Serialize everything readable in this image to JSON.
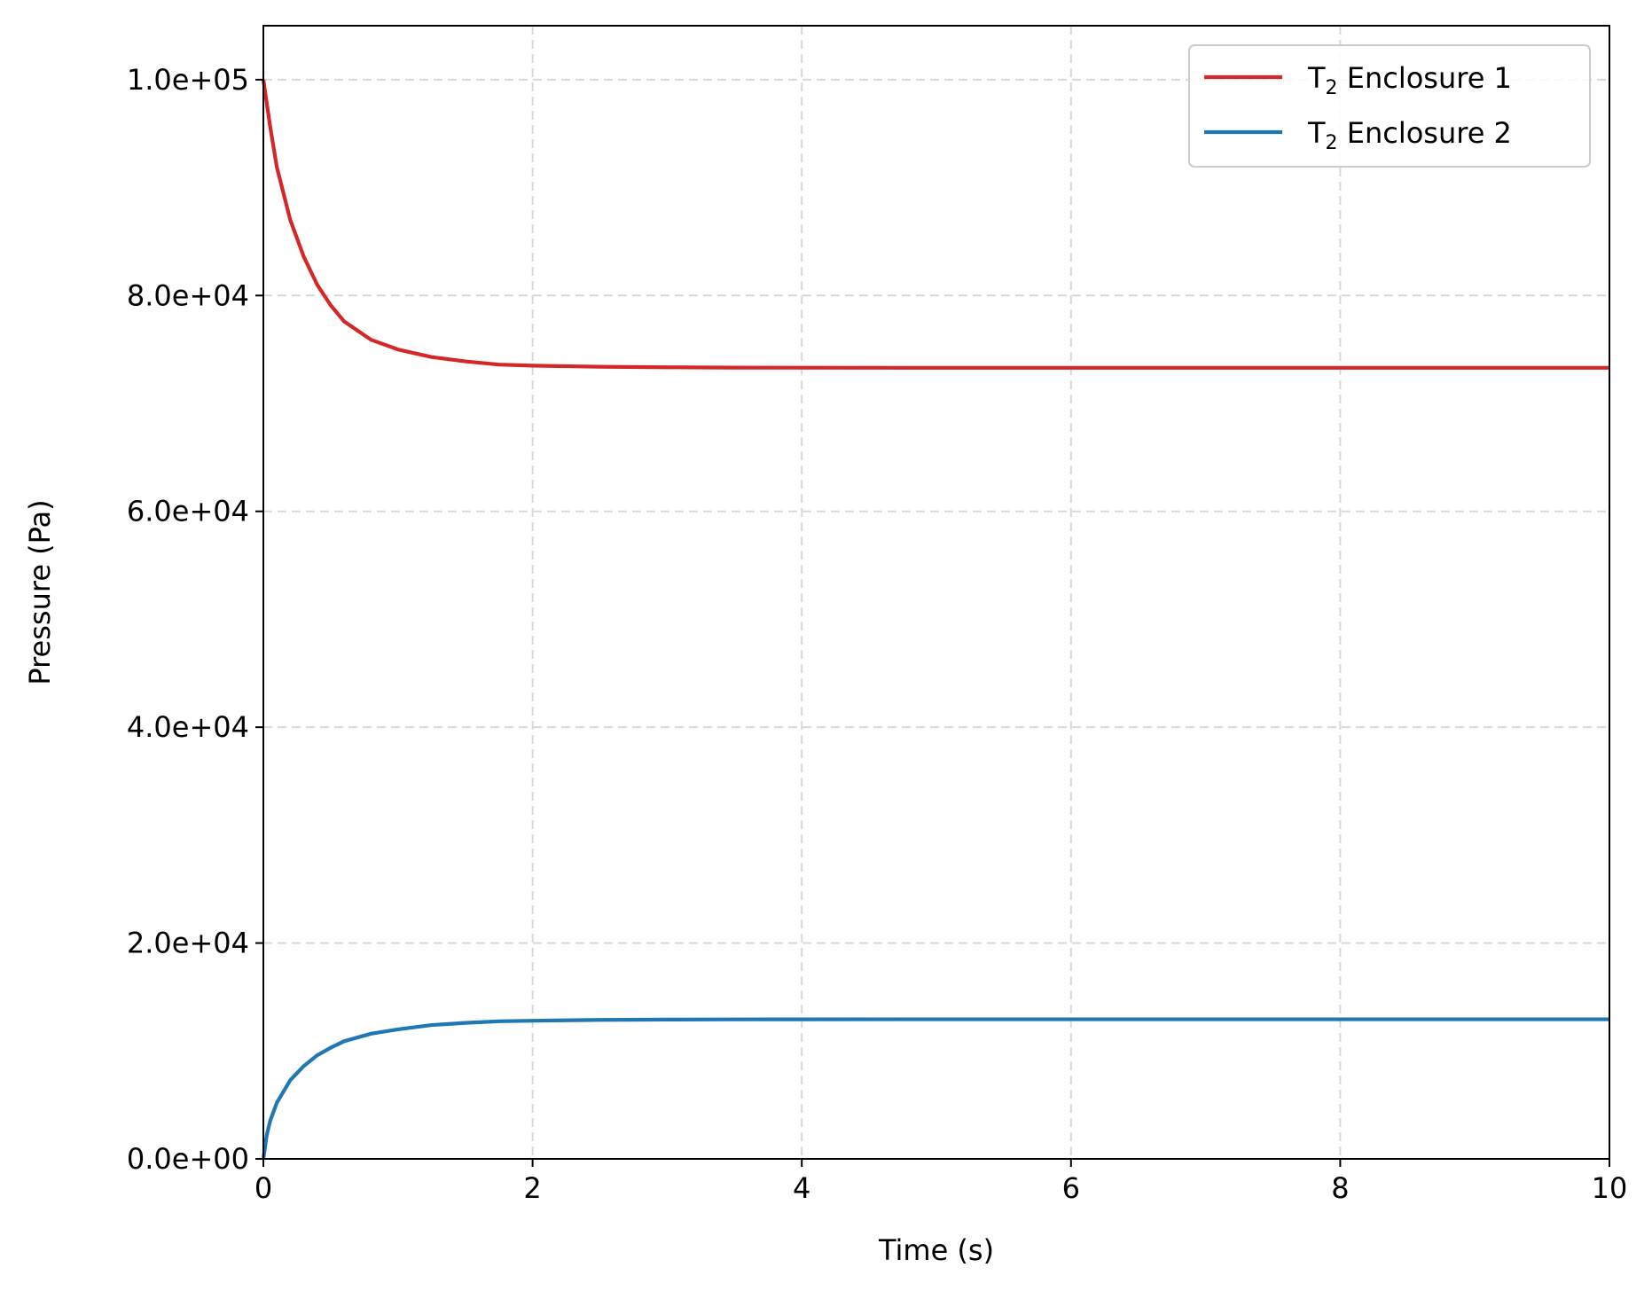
{
  "chart_data": {
    "type": "line",
    "title": "",
    "xlabel": "Time (s)",
    "ylabel": "Pressure (Pa)",
    "xlim": [
      0,
      10
    ],
    "ylim": [
      0,
      105000
    ],
    "x_ticks": [
      0,
      2,
      4,
      6,
      8,
      10
    ],
    "x_tick_labels": [
      "0",
      "2",
      "4",
      "6",
      "8",
      "10"
    ],
    "y_ticks": [
      0,
      20000,
      40000,
      60000,
      80000,
      100000
    ],
    "y_tick_labels": [
      "0.0e+00",
      "2.0e+04",
      "4.0e+04",
      "6.0e+04",
      "8.0e+04",
      "1.0e+05"
    ],
    "grid": true,
    "legend_position": "top-right",
    "series": [
      {
        "name": "T₂ Enclosure 1",
        "name_base": "T",
        "name_sub": "2",
        "name_rest": " Enclosure 1",
        "color": "#d62728",
        "x": [
          0,
          0.05,
          0.1,
          0.2,
          0.3,
          0.4,
          0.5,
          0.6,
          0.8,
          1.0,
          1.25,
          1.5,
          1.75,
          2.0,
          2.5,
          3.0,
          3.5,
          4.0,
          5.0,
          6.0,
          7.0,
          8.0,
          9.0,
          10.0
        ],
        "y": [
          100000,
          95700,
          91900,
          87000,
          83600,
          81000,
          79100,
          77600,
          75900,
          75000,
          74300,
          73900,
          73600,
          73500,
          73400,
          73350,
          73320,
          73310,
          73300,
          73300,
          73300,
          73300,
          73300,
          73300
        ]
      },
      {
        "name": "T₂ Enclosure 2",
        "name_base": "T",
        "name_sub": "2",
        "name_rest": " Enclosure 2",
        "color": "#1f77b4",
        "x": [
          0,
          0.025,
          0.05,
          0.1,
          0.2,
          0.3,
          0.4,
          0.5,
          0.6,
          0.8,
          1.0,
          1.25,
          1.5,
          1.75,
          2.0,
          2.5,
          3.0,
          3.5,
          4.0,
          5.0,
          6.0,
          7.0,
          8.0,
          9.0,
          10.0
        ],
        "y": [
          0,
          2200,
          3500,
          5200,
          7300,
          8600,
          9600,
          10300,
          10900,
          11600,
          12000,
          12400,
          12600,
          12750,
          12800,
          12880,
          12910,
          12925,
          12930,
          12935,
          12935,
          12935,
          12935,
          12935,
          12935
        ]
      }
    ]
  }
}
